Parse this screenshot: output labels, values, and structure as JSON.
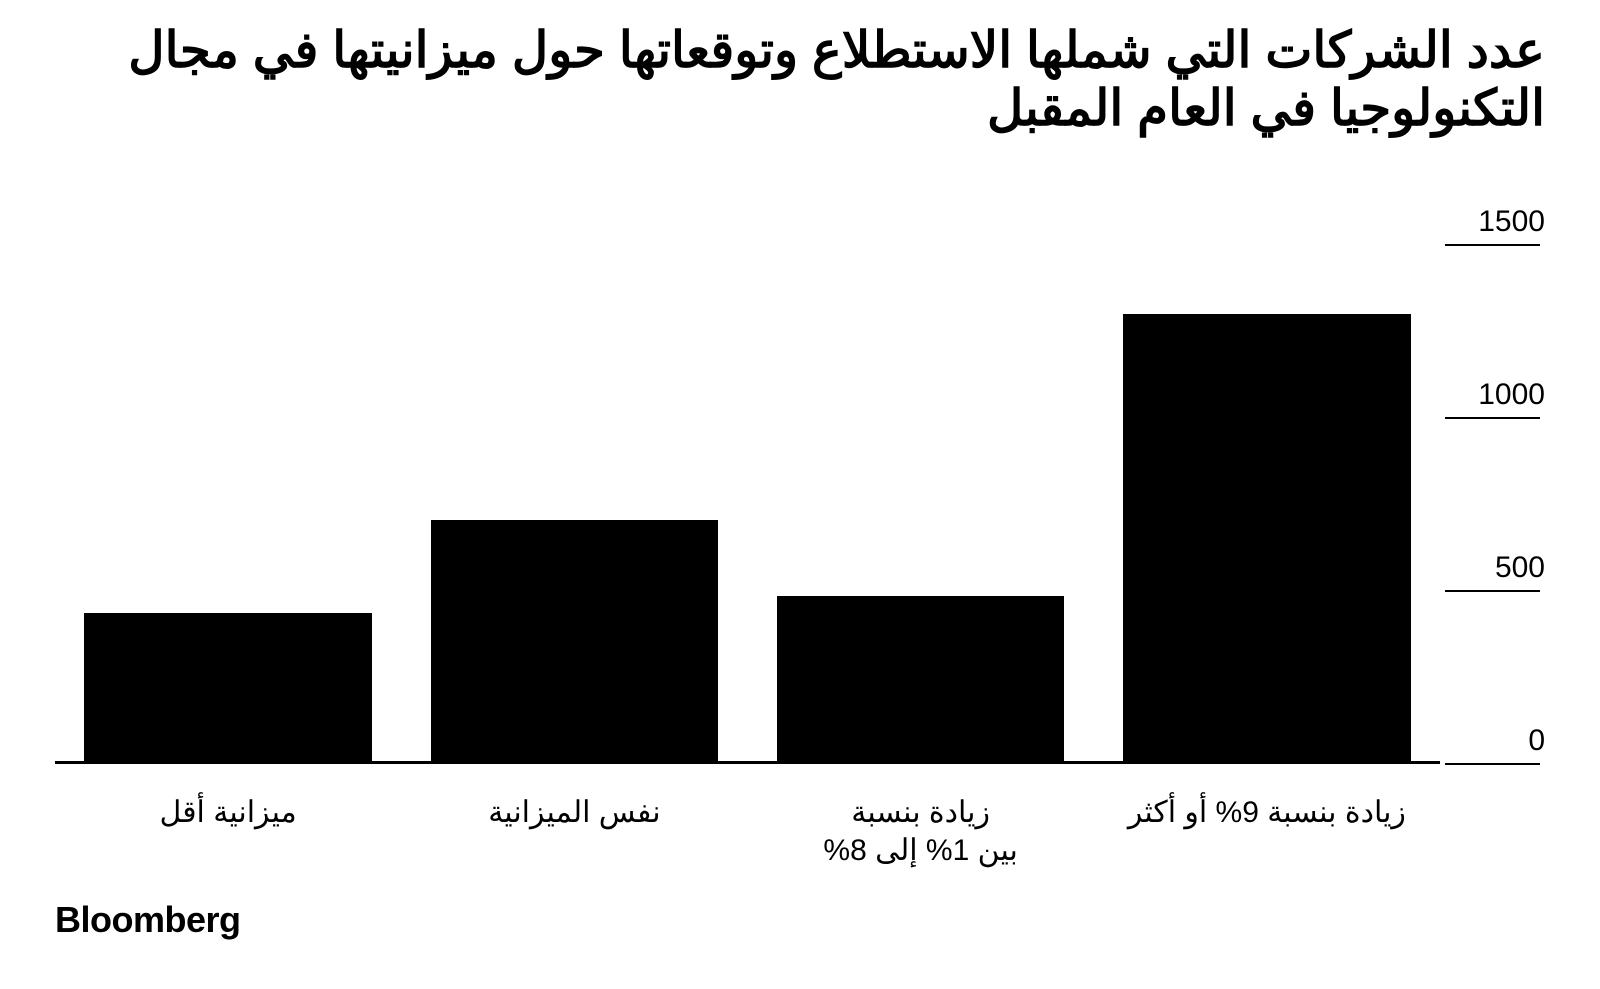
{
  "chart": {
    "type": "bar",
    "title": "عدد الشركات التي شملها الاستطلاع وتوقعاتها حول ميزانيتها في مجال التكنولوجيا في العام المقبل",
    "title_fontsize": 50,
    "title_fontweight": 900,
    "title_color": "#000000",
    "direction": "rtl",
    "background_color": "#ffffff",
    "bar_color": "#000000",
    "axis_color": "#000000",
    "ylim": [
      0,
      1500
    ],
    "ytick_step": 500,
    "yticks": [
      {
        "value": 0,
        "label": "0"
      },
      {
        "value": 500,
        "label": "500"
      },
      {
        "value": 1000,
        "label": "1000"
      },
      {
        "value": 1500,
        "label": "1500"
      }
    ],
    "ytick_fontsize": 30,
    "ytick_fontweight": 400,
    "categories": [
      {
        "label": "ميزانية أقل",
        "value": 430
      },
      {
        "label": "نفس الميزانية",
        "value": 700
      },
      {
        "label": "زيادة بنسبة\nبين 1% إلى 8%",
        "value": 480
      },
      {
        "label": "زيادة بنسبة 9% أو أكثر",
        "value": 1300
      }
    ],
    "xlabel_fontsize": 30,
    "xlabel_fontweight": 400,
    "bar_width_ratio": 0.83
  },
  "source": {
    "label": "Bloomberg",
    "fontsize": 36,
    "fontweight": 900,
    "color": "#000000"
  }
}
